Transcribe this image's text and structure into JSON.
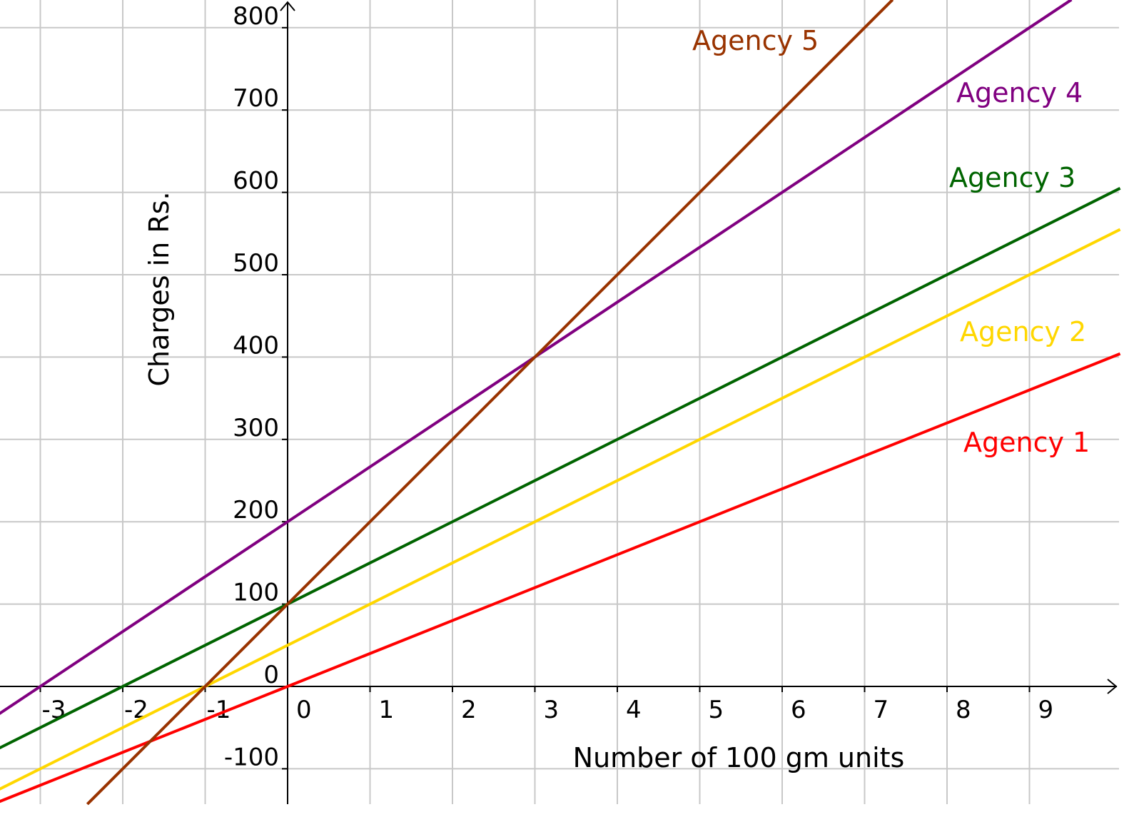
{
  "chart_data": {
    "type": "line",
    "title": "",
    "xlabel": "Number of 100 gm units",
    "ylabel": "Charges in Rs.",
    "xlim": [
      -3.5,
      10.1
    ],
    "ylim": [
      -143,
      834
    ],
    "grid": true,
    "x_ticks": [
      -3,
      -2,
      -1,
      0,
      1,
      2,
      3,
      4,
      5,
      6,
      7,
      8,
      9
    ],
    "x_tick_labels": [
      "-3",
      "-2",
      "-1",
      "0",
      "1",
      "2",
      "3",
      "4",
      "5",
      "6",
      "7",
      "8",
      "9"
    ],
    "y_ticks": [
      -100,
      0,
      100,
      200,
      300,
      400,
      500,
      600,
      700,
      800
    ],
    "y_tick_labels": [
      "-100",
      "0",
      "100",
      "200",
      "300",
      "400",
      "500",
      "600",
      "700",
      "800"
    ],
    "series": [
      {
        "name": "Agency 1",
        "color": "#ff0000",
        "slope": 40,
        "intercept": 0,
        "x": [
          -3.5,
          10.1
        ],
        "y": [
          -140,
          404
        ]
      },
      {
        "name": "Agency 2",
        "color": "#ffd700",
        "slope": 50,
        "intercept": 50,
        "x": [
          -3.5,
          10.1
        ],
        "y": [
          -125,
          555
        ]
      },
      {
        "name": "Agency 3",
        "color": "#006400",
        "slope": 50,
        "intercept": 100,
        "x": [
          -3.5,
          10.1
        ],
        "y": [
          -75,
          605
        ]
      },
      {
        "name": "Agency 4",
        "color": "#800080",
        "slope": 66.67,
        "intercept": 200,
        "x": [
          -3.5,
          10.1
        ],
        "y": [
          -33.3,
          873.3
        ]
      },
      {
        "name": "Agency 5",
        "color": "#993300",
        "slope": 100,
        "intercept": 100,
        "x": [
          -3.5,
          10.1
        ],
        "y": [
          -250,
          1110
        ]
      }
    ]
  }
}
